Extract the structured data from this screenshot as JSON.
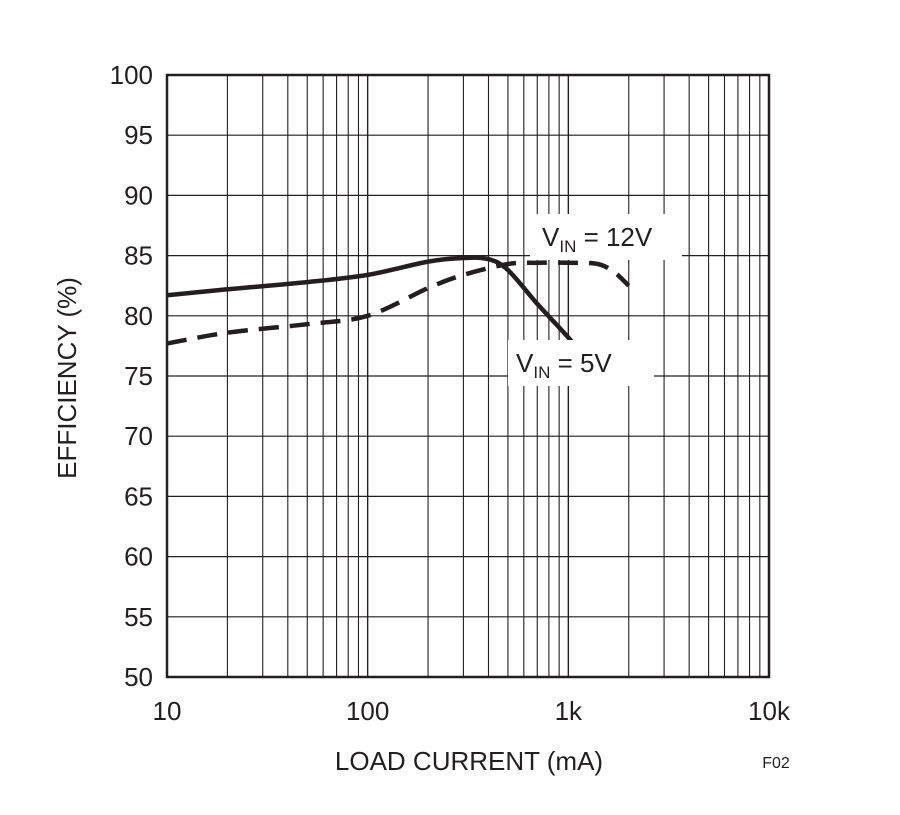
{
  "chart_data": {
    "type": "line",
    "xlabel": "LOAD CURRENT (mA)",
    "ylabel": "EFFICIENCY (%)",
    "x_scale": "log",
    "xlim": [
      10,
      10000
    ],
    "ylim": [
      50,
      100
    ],
    "x_ticks": [
      {
        "value": 10,
        "label": "10"
      },
      {
        "value": 100,
        "label": "100"
      },
      {
        "value": 1000,
        "label": "1k"
      },
      {
        "value": 10000,
        "label": "10k"
      }
    ],
    "y_ticks": [
      {
        "value": 50,
        "label": "50"
      },
      {
        "value": 55,
        "label": "55"
      },
      {
        "value": 60,
        "label": "60"
      },
      {
        "value": 65,
        "label": "65"
      },
      {
        "value": 70,
        "label": "70"
      },
      {
        "value": 75,
        "label": "75"
      },
      {
        "value": 80,
        "label": "80"
      },
      {
        "value": 85,
        "label": "85"
      },
      {
        "value": 90,
        "label": "90"
      },
      {
        "value": 95,
        "label": "95"
      },
      {
        "value": 100,
        "label": "100"
      }
    ],
    "grid": true,
    "figure_id": "F02",
    "series": [
      {
        "name": "VIN = 5V",
        "label_main": "V",
        "label_sub": "IN",
        "label_rest": " = 5V",
        "style": "solid",
        "x": [
          10,
          20,
          50,
          100,
          200,
          300,
          400,
          500,
          700,
          1000,
          1100
        ],
        "y": [
          81.7,
          82.2,
          82.8,
          83.4,
          84.5,
          84.8,
          84.7,
          83.8,
          81.0,
          78.2,
          77.3
        ]
      },
      {
        "name": "VIN = 12V",
        "label_main": "V",
        "label_sub": "IN",
        "label_rest": " = 12V",
        "style": "dashed",
        "x": [
          10,
          20,
          50,
          100,
          200,
          300,
          500,
          700,
          1000,
          1400,
          1700,
          2000
        ],
        "y": [
          77.7,
          78.6,
          79.3,
          80.0,
          82.3,
          83.4,
          84.3,
          84.4,
          84.4,
          84.3,
          83.6,
          82.5
        ]
      }
    ]
  }
}
